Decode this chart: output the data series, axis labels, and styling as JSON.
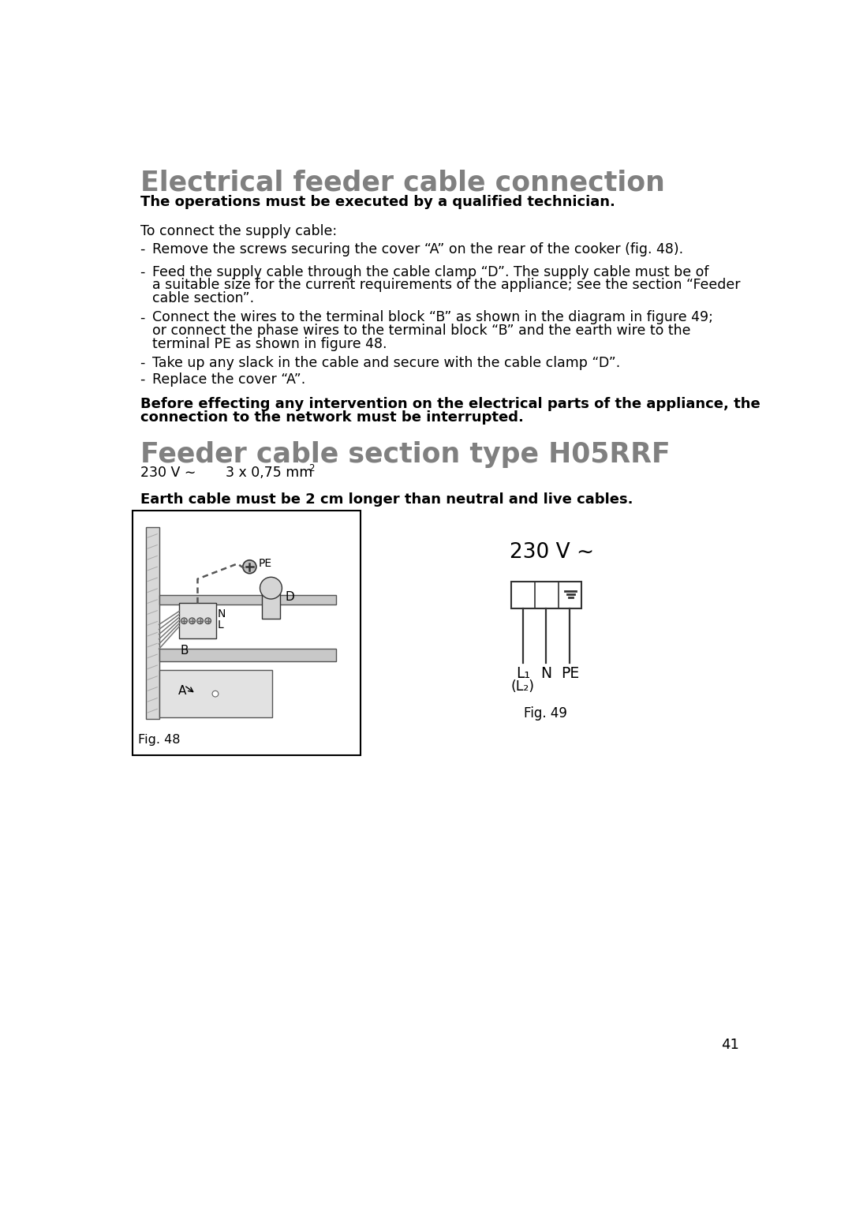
{
  "bg_color": "#ffffff",
  "title1": "Electrical feeder cable connection",
  "title1_color": "#808080",
  "subtitle1": "The operations must be executed by a qualified technician.",
  "para_intro": "To connect the supply cable:",
  "bullet1": "Remove the screws securing the cover “A” on the rear of the cooker (fig. 48).",
  "bullet2a": "Feed the supply cable through the cable clamp “D”. The supply cable must be of",
  "bullet2b": "a suitable size for the current requirements of the appliance; see the section “Feeder",
  "bullet2c": "cable section”.",
  "bullet3a": "Connect the wires to the terminal block “B” as shown in the diagram in figure 49;",
  "bullet3b": "or connect the phase wires to the terminal block “B” and the earth wire to the",
  "bullet3c": "terminal PE as shown in figure 48.",
  "bullet4": "Take up any slack in the cable and secure with the cable clamp “D”.",
  "bullet5": "Replace the cover “A”.",
  "warning_text1": "Before effecting any intervention on the electrical parts of the appliance, the",
  "warning_text2": "connection to the network must be interrupted.",
  "title2": "Feeder cable section type H05RRF",
  "title2_color": "#808080",
  "spec_volt": "230 V ∼",
  "spec_section": "3 x 0,75 mm",
  "spec_exp": "2",
  "earth_note": "Earth cable must be 2 cm longer than neutral and live cables.",
  "fig48_label": "Fig. 48",
  "fig49_label": "Fig. 49",
  "fig49_voltage": "230 V ∼",
  "fig49_l1": "L₁",
  "fig49_n": "N",
  "fig49_pe": "PE",
  "fig49_sublabel": "(L₂)",
  "page_number": "41",
  "text_color": "#000000",
  "gray_color": "#808080"
}
